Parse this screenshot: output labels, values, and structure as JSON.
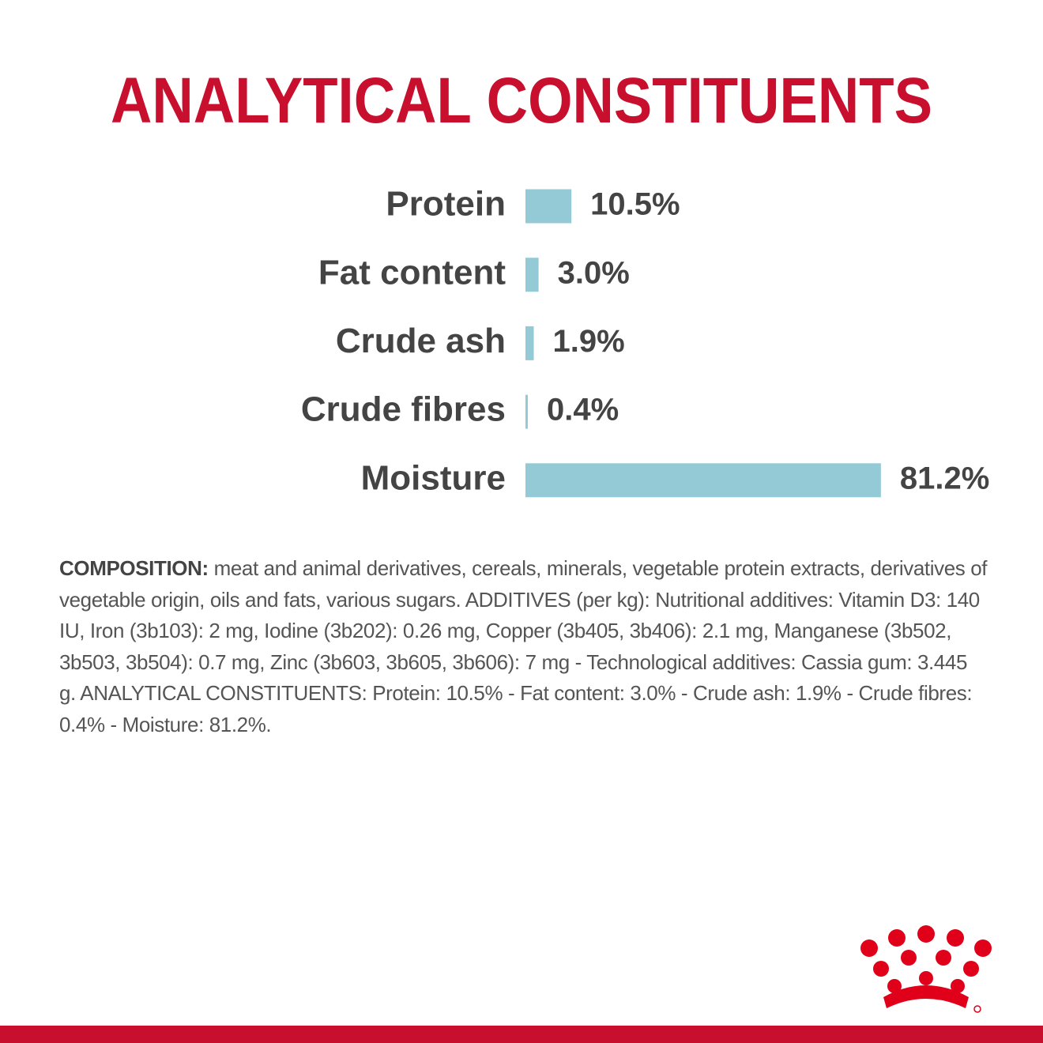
{
  "chart_data": {
    "type": "bar",
    "orientation": "horizontal",
    "title": "ANALYTICAL CONSTITUENTS",
    "categories": [
      "Protein",
      "Fat content",
      "Crude ash",
      "Crude fibres",
      "Moisture"
    ],
    "values": [
      10.5,
      3.0,
      1.9,
      0.4,
      81.2
    ],
    "value_labels": [
      "10.5%",
      "3.0%",
      "1.9%",
      "0.4%",
      "81.2%"
    ],
    "color": "#93cad6"
  },
  "composition": {
    "label": "COMPOSITION:",
    "text": "meat and animal derivatives, cereals, minerals, vegetable protein extracts, derivatives of vegetable origin, oils and fats, various sugars. ADDITIVES (per kg): Nutritional additives: Vitamin D3: 140 IU, Iron (3b103): 2 mg, Iodine (3b202): 0.26 mg, Copper (3b405, 3b406): 2.1 mg, Manganese (3b502, 3b503, 3b504): 0.7 mg, Zinc (3b603, 3b605, 3b606): 7 mg - Technological additives: Cassia gum: 3.445 g. ANALYTICAL CONSTITUENTS: Protein: 10.5% - Fat content: 3.0% - Crude ash: 1.9% - Crude fibres: 0.4% - Moisture: 81.2%."
  }
}
